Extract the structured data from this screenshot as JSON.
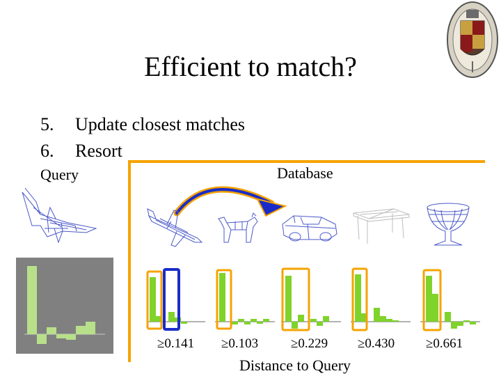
{
  "slide": {
    "title": "Efficient to match?",
    "steps": [
      {
        "num": "5.",
        "text": "Update closest matches"
      },
      {
        "num": "6.",
        "text": "Resort"
      }
    ],
    "query_label": "Query",
    "database_label": "Database",
    "distances": [
      "≥0.141",
      "≥0.103",
      "≥0.229",
      "≥0.430",
      "≥0.661"
    ],
    "footer": "Distance to Query",
    "models": [
      "airplane",
      "dog",
      "car",
      "table",
      "goblet"
    ],
    "colors": {
      "orange": "#f5a300",
      "blue": "#1a2cc8",
      "green": "#7fd32a",
      "gray": "#808080",
      "bar_light": "#b8e08a"
    }
  }
}
